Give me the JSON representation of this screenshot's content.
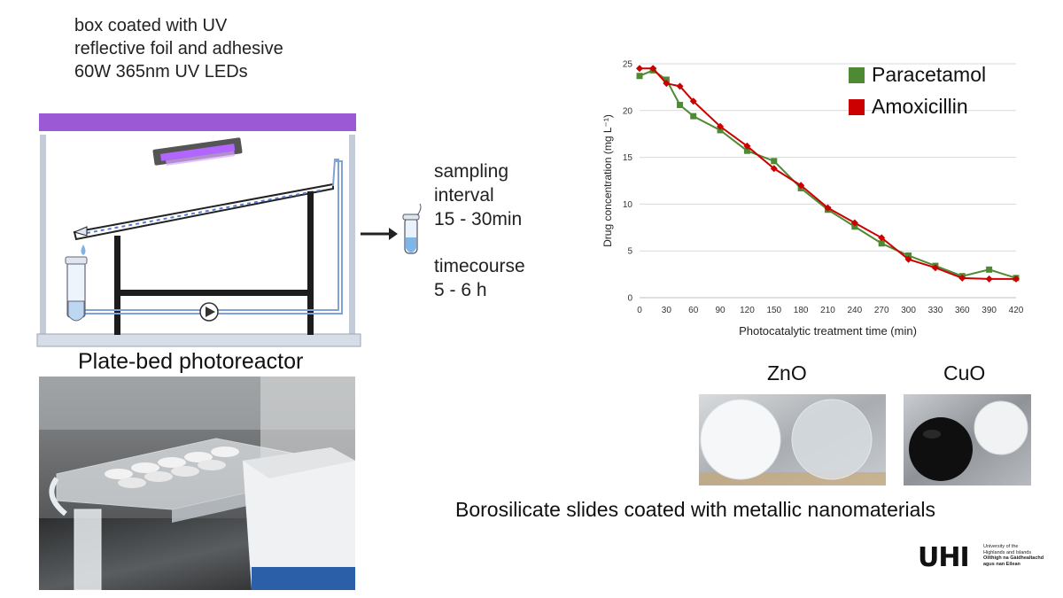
{
  "diagram": {
    "box_caption": [
      "box coated with UV",
      "reflective foil and adhesive",
      "60W 365nm UV LEDs"
    ],
    "sampling": {
      "interval_lines": [
        "sampling",
        "interval",
        "15 - 30min"
      ],
      "timecourse_lines": [
        "timecourse",
        "5 - 6 h"
      ]
    },
    "reactor_title": "Plate-bed photoreactor",
    "photo_desc_icon": "reactor-photo",
    "colors": {
      "uv_bar": "#9b59d6",
      "uv_lamp": "#8e44ad",
      "frame": "#b9c4d3",
      "stand": "#1c1c1c",
      "tubing": "#7fa3d6"
    }
  },
  "chart_data": {
    "type": "line",
    "xlabel": "Photocatalytic treatment time (min)",
    "ylabel": "Drug concentration (mg L⁻¹)",
    "xlim": [
      0,
      420
    ],
    "ylim": [
      0,
      25
    ],
    "xticks": [
      0,
      30,
      60,
      90,
      120,
      150,
      180,
      210,
      240,
      270,
      300,
      330,
      360,
      390,
      420
    ],
    "yticks": [
      0,
      5,
      10,
      15,
      20,
      25
    ],
    "grid": true,
    "legend_position": "top-right",
    "series": [
      {
        "name": "Paracetamol",
        "color": "#4e8a33",
        "marker": "square",
        "x": [
          0,
          15,
          30,
          45,
          60,
          90,
          120,
          150,
          180,
          210,
          240,
          270,
          300,
          330,
          360,
          390,
          420
        ],
        "y": [
          23.7,
          24.3,
          23.3,
          20.6,
          19.4,
          17.9,
          15.7,
          14.6,
          11.7,
          9.4,
          7.6,
          5.8,
          4.5,
          3.4,
          2.3,
          3.0,
          2.1
        ]
      },
      {
        "name": "Amoxicillin",
        "color": "#cc0000",
        "marker": "diamond",
        "x": [
          0,
          15,
          30,
          45,
          60,
          90,
          120,
          150,
          180,
          210,
          240,
          270,
          300,
          330,
          360,
          390,
          420
        ],
        "y": [
          24.5,
          24.5,
          22.9,
          22.6,
          21.0,
          18.3,
          16.2,
          13.8,
          12.0,
          9.6,
          8.0,
          6.4,
          4.1,
          3.2,
          2.1,
          2.0,
          2.0
        ]
      }
    ]
  },
  "slides": {
    "labels": [
      "ZnO",
      "CuO"
    ],
    "caption": "Borosilicate slides coated with metallic nanomaterials"
  },
  "logo": {
    "wordmark": "UHI",
    "lines": [
      "University of the",
      "Highlands and Islands",
      "Oilthigh na Gàidhealtachd",
      "agus nan Eilean"
    ]
  }
}
